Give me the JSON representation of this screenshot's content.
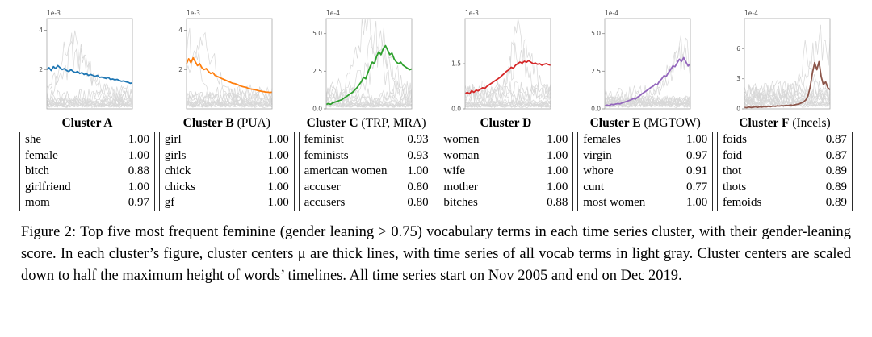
{
  "caption": "Figure 2: Top five most frequent feminine (gender leaning > 0.75) vocabulary terms in each time series cluster, with their gender-leaning score. In each cluster’s figure, cluster centers μ are thick lines, with time series of all vocab terms in light gray. Cluster centers are scaled down to half the maximum height of words’ timelines. All time series start on Nov 2005 and end on Dec 2019.",
  "clusters": [
    {
      "name": "Cluster A",
      "qualifier": "",
      "terms": [
        [
          "she",
          "1.00"
        ],
        [
          "female",
          "1.00"
        ],
        [
          "bitch",
          "0.88"
        ],
        [
          "girlfriend",
          "1.00"
        ],
        [
          "mom",
          "0.97"
        ]
      ]
    },
    {
      "name": "Cluster B",
      "qualifier": "(PUA)",
      "terms": [
        [
          "girl",
          "1.00"
        ],
        [
          "girls",
          "1.00"
        ],
        [
          "chick",
          "1.00"
        ],
        [
          "chicks",
          "1.00"
        ],
        [
          "gf",
          "1.00"
        ]
      ]
    },
    {
      "name": "Cluster C",
      "qualifier": "(TRP, MRA)",
      "terms": [
        [
          "feminist",
          "0.93"
        ],
        [
          "feminists",
          "0.93"
        ],
        [
          "american women",
          "1.00"
        ],
        [
          "accuser",
          "0.80"
        ],
        [
          "accusers",
          "0.80"
        ]
      ]
    },
    {
      "name": "Cluster D",
      "qualifier": "",
      "terms": [
        [
          "women",
          "1.00"
        ],
        [
          "woman",
          "1.00"
        ],
        [
          "wife",
          "1.00"
        ],
        [
          "mother",
          "1.00"
        ],
        [
          "bitches",
          "0.88"
        ]
      ]
    },
    {
      "name": "Cluster E",
      "qualifier": "(MGTOW)",
      "terms": [
        [
          "females",
          "1.00"
        ],
        [
          "virgin",
          "0.97"
        ],
        [
          "whore",
          "0.91"
        ],
        [
          "cunt",
          "0.77"
        ],
        [
          "most women",
          "1.00"
        ]
      ]
    },
    {
      "name": "Cluster F",
      "qualifier": "(Incels)",
      "terms": [
        [
          "foids",
          "0.87"
        ],
        [
          "foid",
          "0.87"
        ],
        [
          "thot",
          "0.89"
        ],
        [
          "thots",
          "0.89"
        ],
        [
          "femoids",
          "0.89"
        ]
      ]
    }
  ],
  "chart_data": [
    {
      "type": "line",
      "cluster": "Cluster A",
      "scale_label": "1e-3",
      "color": "#1f77b4",
      "ylim": 4.6,
      "yticks": [
        {
          "v": 2,
          "label": "2"
        },
        {
          "v": 4,
          "label": "4"
        }
      ],
      "x_range": [
        "Nov 2005",
        "Dec 2019"
      ],
      "center": [
        2.0,
        2.1,
        1.95,
        2.15,
        2.05,
        2.2,
        2.1,
        2.0,
        2.05,
        1.95,
        1.9,
        2.0,
        1.9,
        1.85,
        1.9,
        1.8,
        1.85,
        1.75,
        1.8,
        1.7,
        1.75,
        1.7,
        1.65,
        1.7,
        1.6,
        1.62,
        1.58,
        1.55,
        1.6,
        1.5,
        1.52,
        1.48,
        1.5,
        1.45,
        1.4,
        1.42,
        1.38,
        1.35,
        1.3,
        1.32
      ],
      "seed": 11,
      "gray_count": 15,
      "big_count": 2,
      "peak_hint": 0.3,
      "note": "cluster center µ (thick blue) over member word time series in light gray"
    },
    {
      "type": "line",
      "cluster": "Cluster B (PUA)",
      "scale_label": "1e-3",
      "color": "#ff7f0e",
      "ylim": 4.6,
      "yticks": [
        {
          "v": 2,
          "label": "2"
        },
        {
          "v": 4,
          "label": "4"
        }
      ],
      "x_range": [
        "Nov 2005",
        "Dec 2019"
      ],
      "center": [
        2.3,
        2.55,
        2.35,
        2.6,
        2.4,
        2.2,
        2.3,
        2.1,
        2.0,
        2.05,
        1.9,
        1.8,
        1.85,
        1.7,
        1.65,
        1.6,
        1.55,
        1.5,
        1.45,
        1.4,
        1.35,
        1.3,
        1.28,
        1.25,
        1.2,
        1.15,
        1.12,
        1.1,
        1.05,
        1.02,
        1.0,
        0.98,
        0.95,
        0.92,
        0.9,
        0.88,
        0.86,
        0.85,
        0.83,
        0.85
      ],
      "seed": 22,
      "gray_count": 15,
      "big_count": 2,
      "peak_hint": 0.1,
      "note": "cluster center µ (thick orange) over member word time series in light gray"
    },
    {
      "type": "line",
      "cluster": "Cluster C (TRP, MRA)",
      "scale_label": "1e-4",
      "color": "#2ca02c",
      "ylim": 6.0,
      "yticks": [
        {
          "v": 0,
          "label": "0.0"
        },
        {
          "v": 2.5,
          "label": "2.5"
        },
        {
          "v": 5,
          "label": "5.0"
        }
      ],
      "x_range": [
        "Nov 2005",
        "Dec 2019"
      ],
      "center": [
        0.3,
        0.35,
        0.3,
        0.4,
        0.45,
        0.5,
        0.55,
        0.6,
        0.7,
        0.8,
        0.9,
        1.0,
        1.1,
        1.25,
        1.4,
        1.6,
        1.8,
        2.1,
        2.0,
        2.4,
        2.8,
        3.1,
        3.0,
        3.5,
        3.8,
        3.6,
        4.0,
        4.2,
        3.9,
        3.6,
        3.7,
        3.3,
        3.1,
        3.0,
        3.1,
        2.9,
        2.8,
        2.7,
        2.6,
        2.65
      ],
      "seed": 33,
      "gray_count": 15,
      "big_count": 3,
      "peak_hint": 0.55,
      "note": "cluster center µ (thick green) over member word time series in light gray"
    },
    {
      "type": "line",
      "cluster": "Cluster D",
      "scale_label": "1e-3",
      "color": "#d62728",
      "ylim": 3.0,
      "yticks": [
        {
          "v": 0,
          "label": "0.0"
        },
        {
          "v": 1.5,
          "label": "1.5"
        }
      ],
      "x_range": [
        "Nov 2005",
        "Dec 2019"
      ],
      "center": [
        0.5,
        0.55,
        0.5,
        0.6,
        0.55,
        0.62,
        0.6,
        0.65,
        0.7,
        0.68,
        0.75,
        0.8,
        0.85,
        0.9,
        0.95,
        1.0,
        1.05,
        1.12,
        1.18,
        1.25,
        1.3,
        1.38,
        1.35,
        1.45,
        1.5,
        1.55,
        1.52,
        1.58,
        1.55,
        1.6,
        1.55,
        1.5,
        1.52,
        1.48,
        1.5,
        1.45,
        1.48,
        1.5,
        1.47,
        1.45
      ],
      "seed": 44,
      "gray_count": 15,
      "big_count": 2,
      "peak_hint": 0.7,
      "note": "cluster center µ (thick red) over member word time series in light gray"
    },
    {
      "type": "line",
      "cluster": "Cluster E (MGTOW)",
      "scale_label": "1e-4",
      "color": "#9467bd",
      "ylim": 6.0,
      "yticks": [
        {
          "v": 0,
          "label": "0.0"
        },
        {
          "v": 2.5,
          "label": "2.5"
        },
        {
          "v": 5,
          "label": "5.0"
        }
      ],
      "x_range": [
        "Nov 2005",
        "Dec 2019"
      ],
      "center": [
        0.2,
        0.25,
        0.22,
        0.3,
        0.28,
        0.32,
        0.35,
        0.33,
        0.4,
        0.45,
        0.5,
        0.55,
        0.6,
        0.68,
        0.65,
        0.78,
        0.88,
        1.0,
        1.1,
        1.2,
        1.3,
        1.42,
        1.5,
        1.65,
        1.6,
        1.85,
        2.0,
        2.2,
        2.15,
        2.4,
        2.6,
        2.85,
        2.8,
        3.05,
        3.3,
        3.15,
        3.4,
        3.1,
        2.85,
        3.0
      ],
      "seed": 55,
      "gray_count": 15,
      "big_count": 2,
      "peak_hint": 0.85,
      "note": "cluster center µ (thick purple) over member word time series in light gray"
    },
    {
      "type": "line",
      "cluster": "Cluster F (Incels)",
      "scale_label": "1e-4",
      "color": "#8c564b",
      "ylim": 9.0,
      "yticks": [
        {
          "v": 0,
          "label": "0"
        },
        {
          "v": 3,
          "label": "3"
        },
        {
          "v": 6,
          "label": "6"
        }
      ],
      "x_range": [
        "Nov 2005",
        "Dec 2019"
      ],
      "center": [
        0.15,
        0.12,
        0.18,
        0.14,
        0.16,
        0.2,
        0.15,
        0.2,
        0.18,
        0.22,
        0.2,
        0.25,
        0.22,
        0.28,
        0.25,
        0.3,
        0.28,
        0.32,
        0.3,
        0.35,
        0.32,
        0.38,
        0.35,
        0.4,
        0.45,
        0.5,
        0.6,
        0.7,
        0.9,
        1.3,
        2.2,
        3.6,
        4.6,
        3.9,
        4.7,
        3.2,
        2.4,
        2.7,
        2.1,
        1.9
      ],
      "seed": 66,
      "gray_count": 15,
      "big_count": 2,
      "peak_hint": 0.85,
      "note": "cluster center µ (thick brown) over member word time series in light gray"
    }
  ]
}
